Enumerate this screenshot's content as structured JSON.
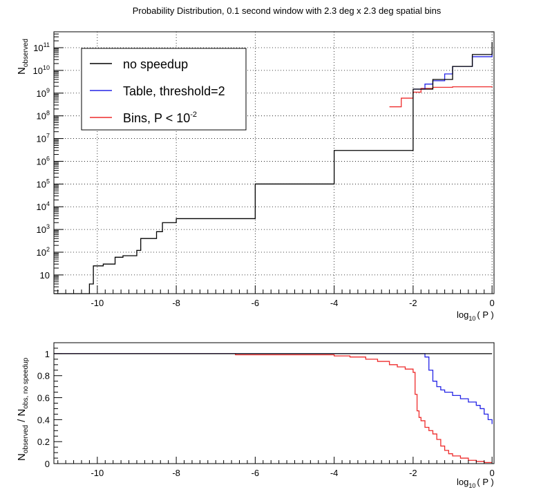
{
  "title": "Probability Distribution, 0.1 second window with 2.3 deg x 2.3 deg spatial bins",
  "colors": {
    "no_speedup": "#000000",
    "table": "#2323e6",
    "bins": "#ee2a2a",
    "frame": "#000000"
  },
  "chart_data": [
    {
      "type": "line",
      "step": true,
      "xlabel_main": "log",
      "xlabel_sub": "10",
      "xlabel_rest": "( P )",
      "ylabel_main": "N",
      "ylabel_sub": "observed",
      "xlim": [
        -11.1,
        0.05
      ],
      "ylim": [
        1.5,
        500000000000
      ],
      "yscale": "log",
      "grid": true,
      "xticks": [
        -10,
        -8,
        -6,
        -4,
        -2,
        0
      ],
      "xtick_labels": [
        "-10",
        "-8",
        "-6",
        "-4",
        "-2",
        "0"
      ],
      "yticks": [
        10,
        100,
        1000,
        10000,
        100000,
        1000000,
        10000000,
        100000000,
        1000000000,
        10000000000,
        100000000000
      ],
      "ytick_base": [
        "10",
        "10",
        "10",
        "10",
        "10",
        "10",
        "10",
        "10",
        "10",
        "10",
        "10"
      ],
      "ytick_exp": [
        "",
        "2",
        "3",
        "4",
        "5",
        "6",
        "7",
        "8",
        "9",
        "10",
        "11"
      ],
      "legend": [
        {
          "label": "no speedup",
          "color": "#000000"
        },
        {
          "label": "Table, threshold=2",
          "color": "#2323e6"
        },
        {
          "label_main": "Bins, P < 10",
          "label_sup": "-2",
          "color": "#ee2a2a"
        }
      ],
      "legend_position": "top-left",
      "series": [
        {
          "name": "no speedup",
          "x": [
            -11.1,
            -10.3,
            -10.2,
            -10.1,
            -9.85,
            -9.55,
            -9.35,
            -9.1,
            -9.0,
            -8.9,
            -8.5,
            -8.35,
            -8.0,
            -6.0,
            -4.0,
            -2.0,
            -1.5,
            -1.0,
            -0.5,
            0.0
          ],
          "y": [
            1.5,
            1.5,
            4,
            25,
            30,
            60,
            70,
            70,
            120,
            400,
            800,
            2000,
            3000,
            100000,
            3000000,
            1500000000,
            4000000000,
            15000000000,
            50000000000,
            180000000000
          ]
        },
        {
          "name": "Table, threshold=2",
          "x": [
            -2.0,
            -1.7,
            -1.5,
            -1.2,
            -1.0,
            -0.5,
            0.0
          ],
          "y": [
            1500000000,
            2500000000,
            3500000000,
            7000000000,
            15000000000,
            40000000000,
            70000000000
          ]
        },
        {
          "name": "Bins, P < 10-2",
          "x": [
            -2.6,
            -2.3,
            -2.0,
            -1.8,
            -1.5,
            -1.0,
            0.0
          ],
          "y": [
            250000000,
            600000000,
            1100000000,
            1600000000,
            1800000000,
            1900000000,
            2000000000
          ]
        }
      ]
    },
    {
      "type": "line",
      "step": true,
      "xlabel_main": "log",
      "xlabel_sub": "10",
      "xlabel_rest": "( P )",
      "ylabel_a": "N",
      "ylabel_a_sub": "observed",
      "ylabel_b": " / N",
      "ylabel_b_sub": "obs, no speedup",
      "xlim": [
        -11.1,
        0.05
      ],
      "ylim": [
        0,
        1.1
      ],
      "grid": false,
      "xticks": [
        -10,
        -8,
        -6,
        -4,
        -2,
        0
      ],
      "xtick_labels": [
        "-10",
        "-8",
        "-6",
        "-4",
        "-2",
        "0"
      ],
      "yticks": [
        0,
        0.2,
        0.4,
        0.6,
        0.8,
        1
      ],
      "ytick_labels": [
        "0",
        "0.2",
        "0.4",
        "0.6",
        "0.8",
        "1"
      ],
      "series": [
        {
          "name": "no speedup",
          "x": [
            -11.1,
            0.0
          ],
          "y": [
            1,
            1
          ]
        },
        {
          "name": "Table, threshold=2",
          "x": [
            -11.1,
            -7.0,
            -5.0,
            -1.75,
            -1.7,
            -1.6,
            -1.5,
            -1.4,
            -1.3,
            -1.2,
            -1.0,
            -0.8,
            -0.6,
            -0.4,
            -0.3,
            -0.2,
            -0.1,
            0.0
          ],
          "y": [
            1,
            1,
            1,
            1,
            0.97,
            0.85,
            0.75,
            0.7,
            0.67,
            0.65,
            0.62,
            0.59,
            0.56,
            0.53,
            0.5,
            0.45,
            0.4,
            0.36
          ]
        },
        {
          "name": "Bins, P < 10-2",
          "x": [
            -11.1,
            -7.0,
            -6.5,
            -5.0,
            -4.0,
            -3.6,
            -3.2,
            -2.9,
            -2.6,
            -2.4,
            -2.2,
            -2.0,
            -1.95,
            -1.9,
            -1.85,
            -1.8,
            -1.7,
            -1.6,
            -1.5,
            -1.4,
            -1.3,
            -1.2,
            -1.1,
            -1.0,
            -0.8,
            -0.6,
            -0.4,
            -0.2,
            0.0
          ],
          "y": [
            1,
            1,
            0.99,
            0.99,
            0.98,
            0.97,
            0.95,
            0.93,
            0.9,
            0.88,
            0.86,
            0.83,
            0.63,
            0.48,
            0.42,
            0.39,
            0.33,
            0.3,
            0.27,
            0.22,
            0.16,
            0.12,
            0.09,
            0.07,
            0.05,
            0.03,
            0.02,
            0.01,
            0.01
          ]
        }
      ]
    }
  ]
}
